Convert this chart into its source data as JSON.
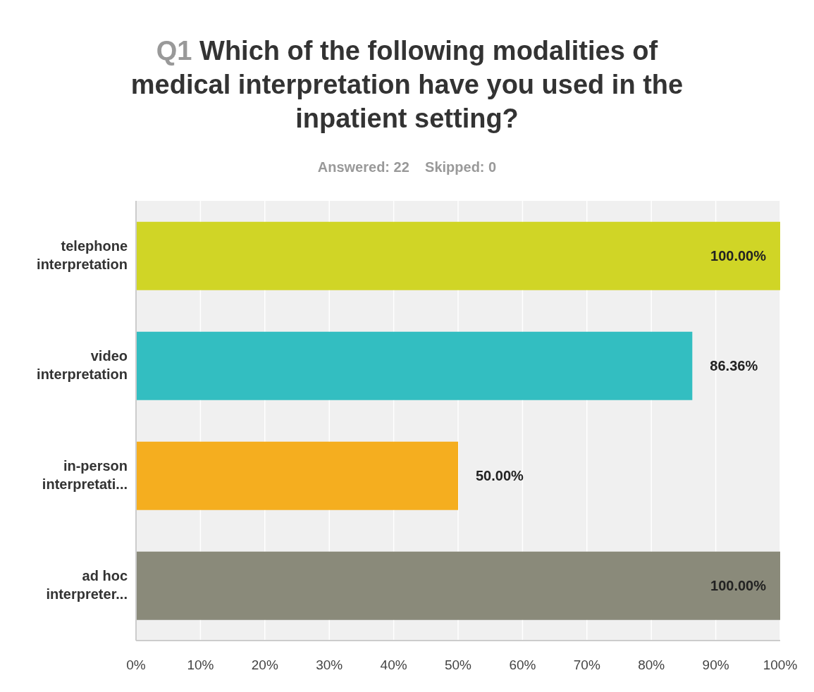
{
  "chart_data": {
    "type": "bar",
    "orientation": "horizontal",
    "title": "Q1 Which of the following modalities of medical interpretation have you used in the inpatient setting?",
    "subtitle": "Answered: 22    Skipped: 0",
    "categories": [
      "telephone interpretation",
      "video interpretation",
      "in-person interpretati...",
      "ad hoc interpreter..."
    ],
    "values": [
      100,
      86.36,
      50,
      100
    ],
    "colors": [
      "#d0d526",
      "#33bec1",
      "#f5ae1f",
      "#8a8a7a"
    ],
    "value_labels": [
      "100.00%",
      "86.36%",
      "50.00%",
      "100.00%"
    ],
    "xlim": [
      0,
      100
    ],
    "xticks": [
      {
        "value": 0,
        "label": "0%"
      },
      {
        "value": 10,
        "label": "10%"
      },
      {
        "value": 20,
        "label": "20%"
      },
      {
        "value": 30,
        "label": "30%"
      },
      {
        "value": 40,
        "label": "40%"
      },
      {
        "value": 50,
        "label": "50%"
      },
      {
        "value": 60,
        "label": "60%"
      },
      {
        "value": 70,
        "label": "70%"
      },
      {
        "value": 80,
        "label": "80%"
      },
      {
        "value": 90,
        "label": "90%"
      },
      {
        "value": 100,
        "label": "100%"
      }
    ],
    "grid": "x"
  }
}
